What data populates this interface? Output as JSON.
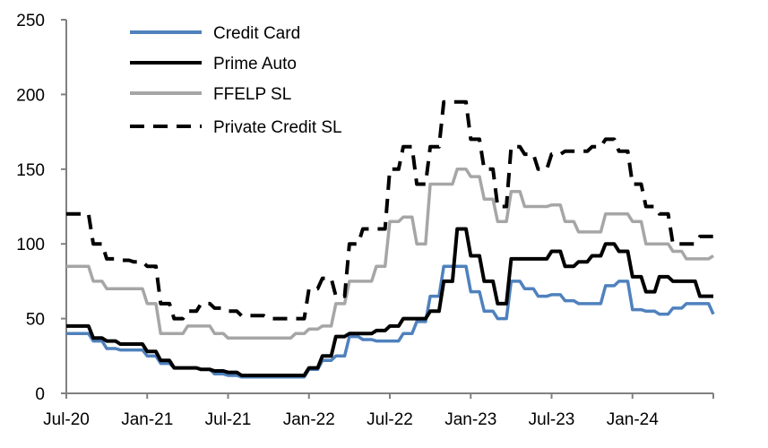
{
  "chart_data": {
    "type": "line",
    "title": "",
    "xlabel": "",
    "ylabel": "",
    "ylim": [
      0,
      250
    ],
    "yticks": [
      "0",
      "50",
      "100",
      "150",
      "200",
      "250"
    ],
    "ytick_values": [
      0,
      50,
      100,
      150,
      200,
      250
    ],
    "xtick_labels": [
      "Jul-20",
      "Jan-21",
      "Jul-21",
      "Jan-22",
      "Jul-22",
      "Jan-23",
      "Jul-23",
      "Jan-24"
    ],
    "xtick_month_index": [
      0,
      6,
      12,
      18,
      24,
      30,
      36,
      42
    ],
    "x_months": 49,
    "x_start": "Jul-20",
    "legend_placement": "top-left",
    "grid": false,
    "series": [
      {
        "name": "Credit Card",
        "color": "#4f81bd",
        "dash": false,
        "values": [
          40,
          40,
          35,
          30,
          29,
          29,
          25,
          20,
          17,
          17,
          16,
          13,
          12,
          11,
          11,
          11,
          11,
          11,
          16,
          22,
          25,
          38,
          36,
          35,
          35,
          40,
          48,
          65,
          85,
          85,
          68,
          55,
          50,
          75,
          70,
          65,
          66,
          62,
          60,
          60,
          72,
          75,
          56,
          55,
          53,
          57,
          60,
          60,
          53
        ]
      },
      {
        "name": "Prime Auto",
        "color": "#000000",
        "dash": false,
        "values": [
          45,
          45,
          37,
          35,
          33,
          33,
          28,
          22,
          17,
          17,
          16,
          15,
          14,
          12,
          12,
          12,
          12,
          12,
          17,
          25,
          38,
          40,
          40,
          42,
          45,
          50,
          50,
          55,
          75,
          110,
          92,
          75,
          60,
          90,
          90,
          90,
          95,
          85,
          88,
          92,
          100,
          95,
          78,
          68,
          78,
          75,
          75,
          65,
          65
        ]
      },
      {
        "name": "FFELP SL",
        "color": "#a6a6a6",
        "dash": false,
        "values": [
          85,
          85,
          75,
          70,
          70,
          70,
          60,
          40,
          40,
          45,
          45,
          40,
          37,
          37,
          37,
          37,
          37,
          40,
          43,
          45,
          60,
          75,
          75,
          85,
          115,
          118,
          100,
          140,
          140,
          150,
          145,
          130,
          115,
          135,
          125,
          125,
          126,
          115,
          108,
          108,
          120,
          120,
          115,
          100,
          100,
          95,
          90,
          90,
          92
        ]
      },
      {
        "name": "Private Credit SL",
        "color": "#000000",
        "dash": true,
        "values": [
          120,
          120,
          100,
          90,
          89,
          88,
          85,
          60,
          50,
          55,
          60,
          57,
          55,
          52,
          52,
          50,
          50,
          50,
          70,
          77,
          65,
          100,
          110,
          110,
          150,
          165,
          140,
          165,
          195,
          195,
          170,
          150,
          125,
          165,
          160,
          150,
          160,
          162,
          162,
          165,
          170,
          162,
          140,
          125,
          120,
          100,
          100,
          105,
          105
        ]
      }
    ]
  }
}
